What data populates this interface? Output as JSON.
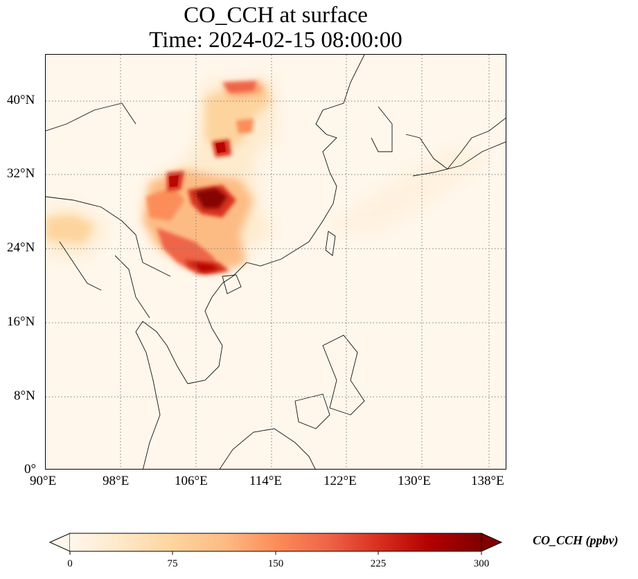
{
  "title": {
    "line1": "CO_CCH at surface",
    "line2": "Time: 2024-02-15 08:00:00"
  },
  "map": {
    "lon_range": [
      90,
      139
    ],
    "lat_range": [
      0,
      45
    ],
    "lon_ticks": [
      "90°E",
      "98°E",
      "106°E",
      "114°E",
      "122°E",
      "130°E",
      "138°E"
    ],
    "lat_ticks": [
      "0°",
      "8°N",
      "16°N",
      "24°N",
      "32°N",
      "40°N"
    ],
    "gridlines": true
  },
  "colorbar": {
    "label": "CO_CCH (ppbv)",
    "ticks": [
      "0",
      "75",
      "150",
      "225",
      "300"
    ],
    "range": [
      0,
      300
    ],
    "extend": "both",
    "colormap": "OrRd",
    "colors": [
      "#fff7ec",
      "#fee8c8",
      "#fdd49e",
      "#fdbb84",
      "#fc8d59",
      "#ef6548",
      "#d7301f",
      "#b30000",
      "#7f0000"
    ]
  }
}
